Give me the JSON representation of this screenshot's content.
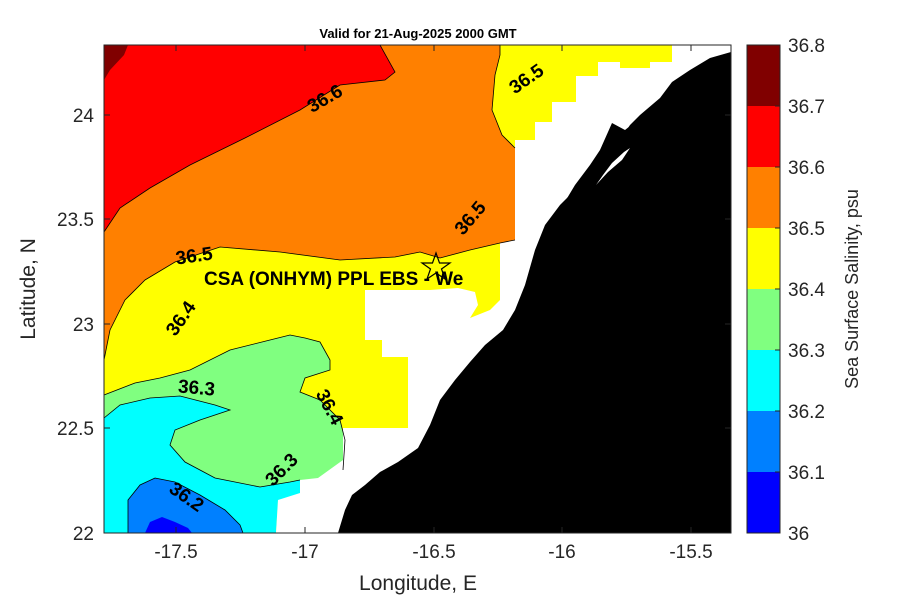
{
  "title": "Valid for 21-Aug-2025 2000 GMT",
  "xlabel": "Longitude, E",
  "ylabel": "Latitude, N",
  "colorbar_label": "Sea Surface Salinity, psu",
  "site_label": "CSA (ONHYM) PPL EBS  - We",
  "site_marker": {
    "lon": -16.5,
    "lat": 23.28
  },
  "x_ticks": [
    "-17.5",
    "-17",
    "-16.5",
    "-16",
    "-15.5"
  ],
  "y_ticks": [
    "24",
    "23.5",
    "23",
    "22.5",
    "22"
  ],
  "colorbar": {
    "ticks": [
      "36.8",
      "36.7",
      "36.6",
      "36.5",
      "36.4",
      "36.3",
      "36.2",
      "36.1",
      "36"
    ],
    "colors": [
      "#800000",
      "#ff0000",
      "#ff8000",
      "#ffff00",
      "#80ff80",
      "#00ffff",
      "#0080ff",
      "#0000ff"
    ],
    "range": [
      36.0,
      36.8
    ]
  },
  "contour_labels": [
    "36.6",
    "36.5",
    "36.5",
    "36.5",
    "36.4",
    "36.4",
    "36.3",
    "36.3",
    "36.2"
  ],
  "chart_data": {
    "type": "heatmap",
    "title": "Valid for 21-Aug-2025 2000 GMT",
    "xlabel": "Longitude, E",
    "ylabel": "Latitude, N",
    "xlim": [
      -17.78,
      -15.35
    ],
    "ylim": [
      22.0,
      24.33
    ],
    "variable": "Sea Surface Salinity, psu",
    "levels": [
      36.0,
      36.1,
      36.2,
      36.3,
      36.4,
      36.5,
      36.6,
      36.7,
      36.8
    ],
    "land_color": "#000000",
    "nodata_color": "#ffffff"
  }
}
